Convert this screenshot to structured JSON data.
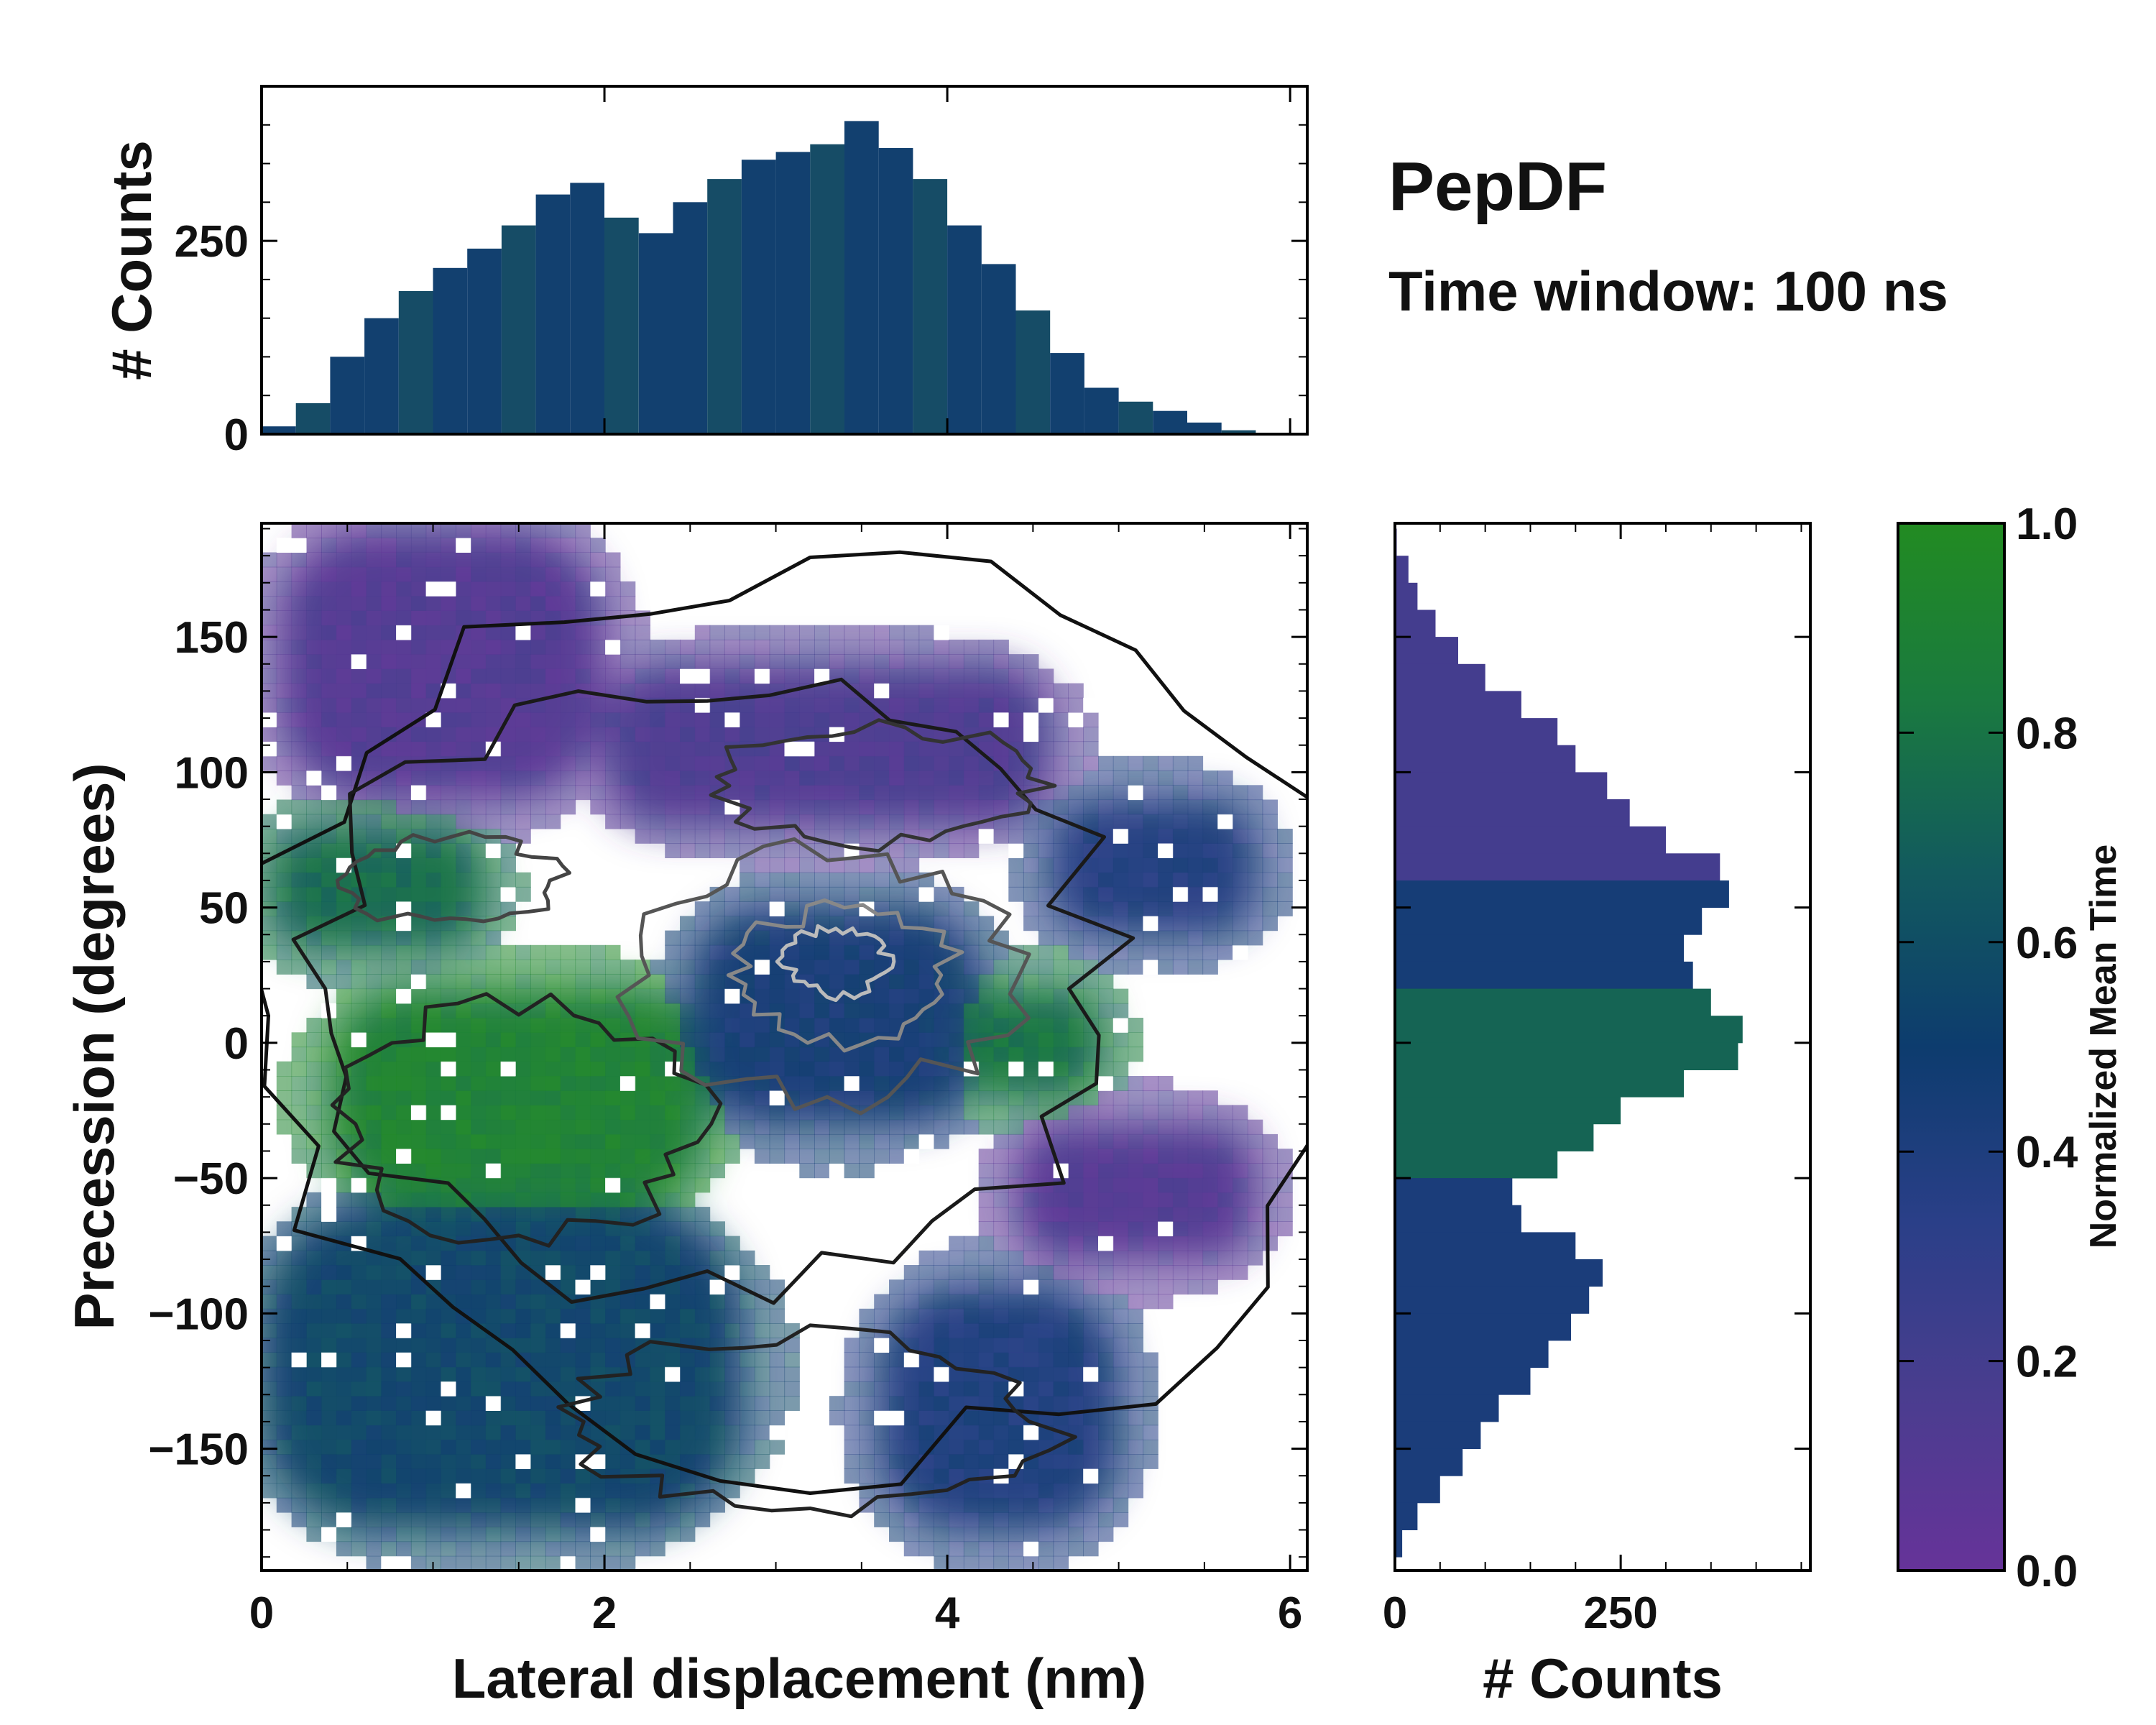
{
  "chart_data": {
    "type": "heatmap",
    "title": "PepDF",
    "subtitle": "Time window: 100 ns",
    "main": {
      "xlabel": "Lateral displacement (nm)",
      "ylabel": "Precession (degrees)",
      "xlim": [
        0,
        6.1
      ],
      "ylim": [
        -195,
        192
      ],
      "xticks": [
        "0",
        "2",
        "4",
        "6"
      ],
      "xtick_values": [
        0,
        2,
        4,
        6
      ],
      "yticks": [
        "150",
        "100",
        "50",
        "0",
        "−50",
        "−100",
        "−150"
      ],
      "ytick_values": [
        150,
        100,
        50,
        0,
        -50,
        -100,
        -150
      ],
      "color_metric": "Normalized mean time per bin",
      "regions": [
        {
          "name": "top-left purple lobe",
          "x": [
            0.1,
            2.0
          ],
          "y": [
            90,
            190
          ],
          "mean_time": 0.12
        },
        {
          "name": "upper-middle purple band",
          "x": [
            2.0,
            4.6
          ],
          "y": [
            80,
            140
          ],
          "mean_time": 0.15
        },
        {
          "name": "upper-left green lobe",
          "x": [
            0.05,
            1.3
          ],
          "y": [
            35,
            80
          ],
          "mean_time": 0.75
        },
        {
          "name": "left green lobe",
          "x": [
            0.4,
            2.6
          ],
          "y": [
            -60,
            20
          ],
          "mean_time": 0.9
        },
        {
          "name": "center blue core",
          "x": [
            2.5,
            4.2
          ],
          "y": [
            -30,
            50
          ],
          "mean_time": 0.45
        },
        {
          "name": "right green patch",
          "x": [
            4.1,
            4.9
          ],
          "y": [
            -20,
            20
          ],
          "mean_time": 0.8
        },
        {
          "name": "right purple lobe",
          "x": [
            4.4,
            5.8
          ],
          "y": [
            -80,
            -30
          ],
          "mean_time": 0.12
        },
        {
          "name": "right blue lobe",
          "x": [
            4.6,
            5.8
          ],
          "y": [
            40,
            90
          ],
          "mean_time": 0.38
        },
        {
          "name": "bottom-left blue-green lobe",
          "x": [
            0.0,
            2.8
          ],
          "y": [
            -180,
            -60
          ],
          "mean_time": 0.55
        },
        {
          "name": "bottom-right blue lobe",
          "x": [
            3.6,
            5.0
          ],
          "y": [
            -180,
            -90
          ],
          "mean_time": 0.4
        }
      ]
    },
    "top_histogram": {
      "ylabel": "# Counts",
      "yticks": [
        "0",
        "250"
      ],
      "ytick_values": [
        0,
        250
      ],
      "ylim": [
        0,
        450
      ],
      "x_centers": [
        0.1,
        0.3,
        0.5,
        0.7,
        0.9,
        1.1,
        1.3,
        1.5,
        1.7,
        1.9,
        2.1,
        2.3,
        2.5,
        2.7,
        2.9,
        3.1,
        3.3,
        3.5,
        3.7,
        3.9,
        4.1,
        4.3,
        4.5,
        4.7,
        4.9,
        5.1,
        5.3,
        5.5,
        5.7
      ],
      "counts": [
        10,
        40,
        100,
        150,
        185,
        215,
        240,
        270,
        310,
        325,
        280,
        260,
        300,
        330,
        355,
        365,
        375,
        405,
        370,
        330,
        270,
        220,
        160,
        105,
        60,
        42,
        30,
        15,
        5
      ]
    },
    "right_histogram": {
      "xlabel": "# Counts",
      "xticks": [
        "0",
        "250"
      ],
      "xtick_values": [
        0,
        250
      ],
      "xlim": [
        0,
        460
      ],
      "y_centers": [
        185,
        175,
        165,
        155,
        145,
        135,
        125,
        115,
        105,
        95,
        85,
        75,
        65,
        55,
        45,
        35,
        25,
        15,
        5,
        -5,
        -15,
        -25,
        -35,
        -45,
        -55,
        -65,
        -75,
        -85,
        -95,
        -105,
        -115,
        -125,
        -135,
        -145,
        -155,
        -165,
        -175,
        -185
      ],
      "counts": [
        2,
        15,
        25,
        45,
        70,
        100,
        140,
        180,
        200,
        235,
        260,
        300,
        360,
        370,
        340,
        320,
        330,
        350,
        385,
        380,
        320,
        250,
        220,
        180,
        130,
        140,
        200,
        230,
        215,
        195,
        170,
        150,
        115,
        95,
        75,
        50,
        25,
        8
      ]
    },
    "colorbar": {
      "label": "Normalized Mean Time",
      "range": [
        0.0,
        1.0
      ],
      "ticks": [
        "0.0",
        "0.2",
        "0.4",
        "0.6",
        "0.8",
        "1.0"
      ],
      "tick_values": [
        0.0,
        0.2,
        0.4,
        0.6,
        0.8,
        1.0
      ],
      "colors": [
        "#663399",
        "#4a3d8f",
        "#2a3f88",
        "#0d3c6e",
        "#125a5e",
        "#1a7a3f",
        "#228b22"
      ]
    }
  }
}
